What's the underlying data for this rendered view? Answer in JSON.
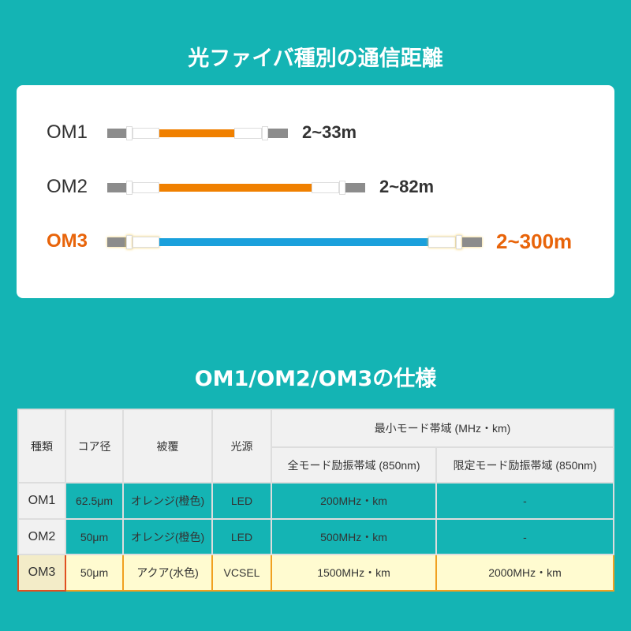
{
  "title1": "光ファイバ種別の通信距離",
  "title2": "OM1/OM2/OM3の仕様",
  "cables": [
    {
      "label": "OM1",
      "range": "2~33m",
      "color": "#f08000"
    },
    {
      "label": "OM2",
      "range": "2~82m",
      "color": "#f08000"
    },
    {
      "label": "OM3",
      "range": "2~300m",
      "color": "#1aa0dc",
      "highlight": "#e8640a"
    }
  ],
  "table": {
    "headers": {
      "type": "種類",
      "core": "コア径",
      "coating": "被覆",
      "source": "光源",
      "bandwidth": "最小モード帯域 (MHz・km)",
      "full": "全モード励振帯域 (850nm)",
      "limited": "限定モード励振帯域 (850nm)"
    },
    "rows": [
      [
        "OM1",
        "62.5μm",
        "オレンジ(橙色)",
        "LED",
        "200MHz・km",
        "-"
      ],
      [
        "OM2",
        "50μm",
        "オレンジ(橙色)",
        "LED",
        "500MHz・km",
        "-"
      ],
      [
        "OM3",
        "50μm",
        "アクア(水色)",
        "VCSEL",
        "1500MHz・km",
        "2000MHz・km"
      ]
    ]
  }
}
